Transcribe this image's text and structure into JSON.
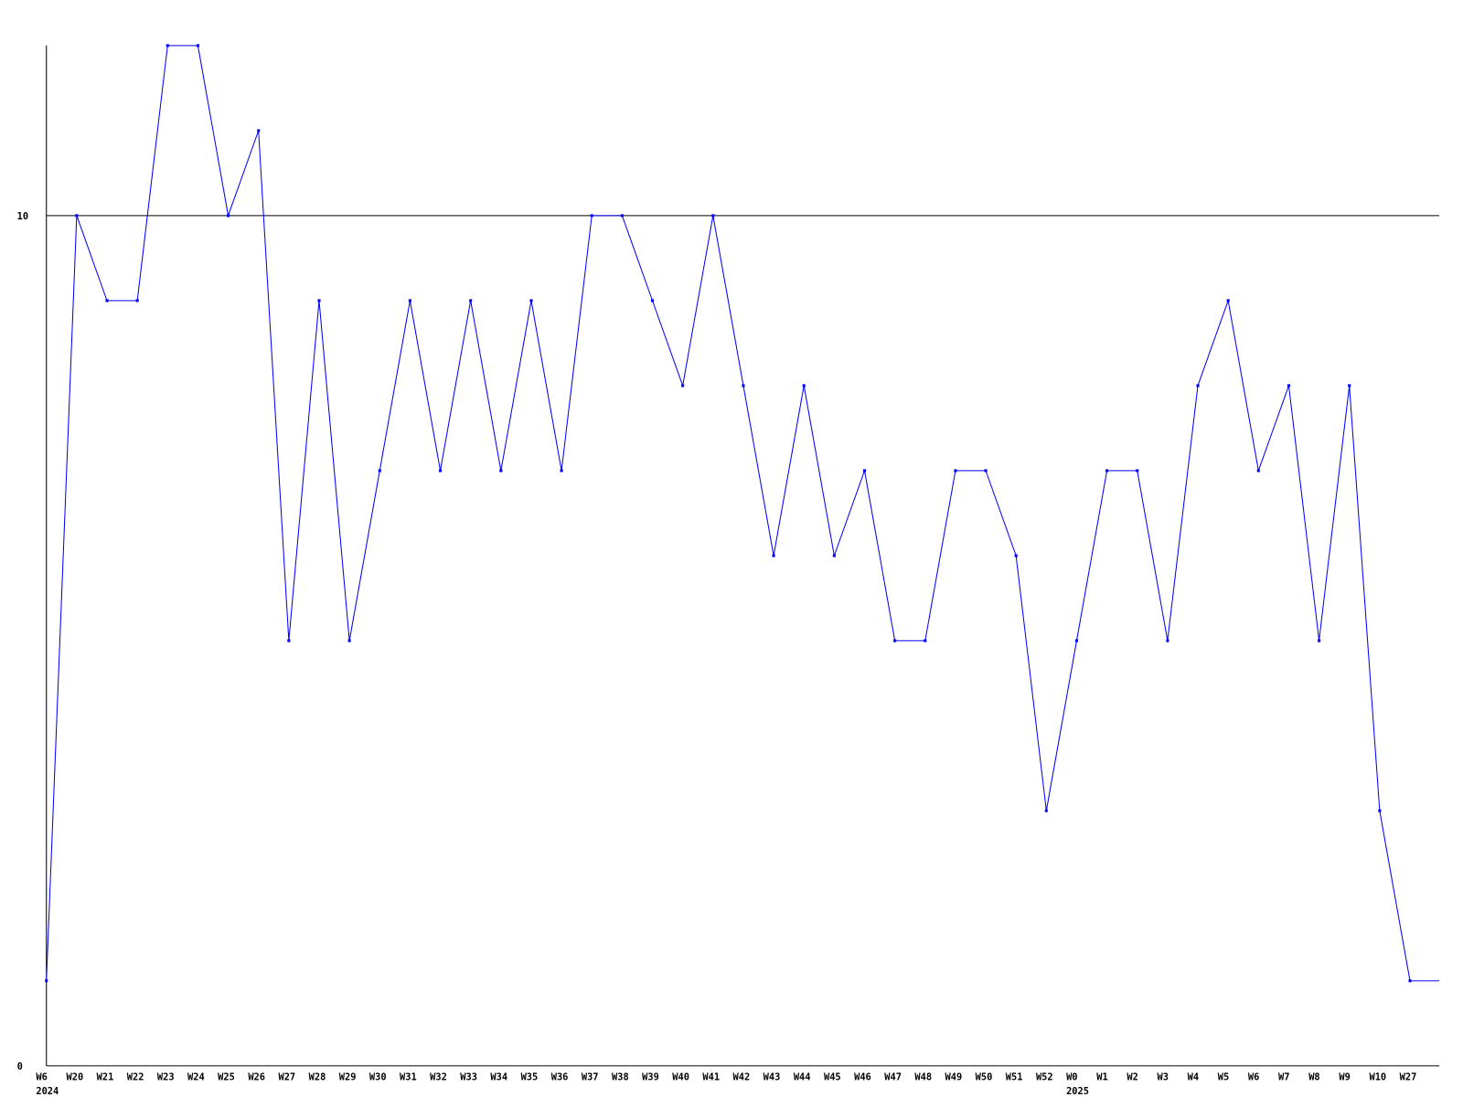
{
  "chart_data": {
    "type": "line",
    "title": "",
    "xlabel": "",
    "ylabel": "",
    "ylim": [
      0,
      12
    ],
    "y_ticks": [
      "0",
      "10"
    ],
    "reference_line": 10,
    "grid": false,
    "line_color": "#0000ff",
    "categories": [
      "W6",
      "W20",
      "W21",
      "W22",
      "W23",
      "W24",
      "W25",
      "W26",
      "W27",
      "W28",
      "W29",
      "W30",
      "W31",
      "W32",
      "W33",
      "W34",
      "W35",
      "W36",
      "W37",
      "W38",
      "W39",
      "W40",
      "W41",
      "W42",
      "W43",
      "W44",
      "W45",
      "W46",
      "W47",
      "W48",
      "W49",
      "W50",
      "W51",
      "W52",
      "W0",
      "W1",
      "W2",
      "W3",
      "W4",
      "W5",
      "W6",
      "W7",
      "W8",
      "W9",
      "W10",
      "W27"
    ],
    "year_labels": [
      {
        "label": "2024",
        "category_index": 0
      },
      {
        "label": "2025",
        "category_index": 34
      }
    ],
    "values": [
      1,
      10,
      9,
      9,
      12,
      12,
      10,
      11,
      5,
      9,
      5,
      7,
      9,
      7,
      9,
      7,
      9,
      7,
      10,
      10,
      9,
      8,
      10,
      8,
      6,
      8,
      6,
      7,
      5,
      5,
      7,
      7,
      6,
      3,
      5,
      7,
      7,
      5,
      8,
      9,
      7,
      8,
      5,
      8,
      3,
      1
    ]
  }
}
